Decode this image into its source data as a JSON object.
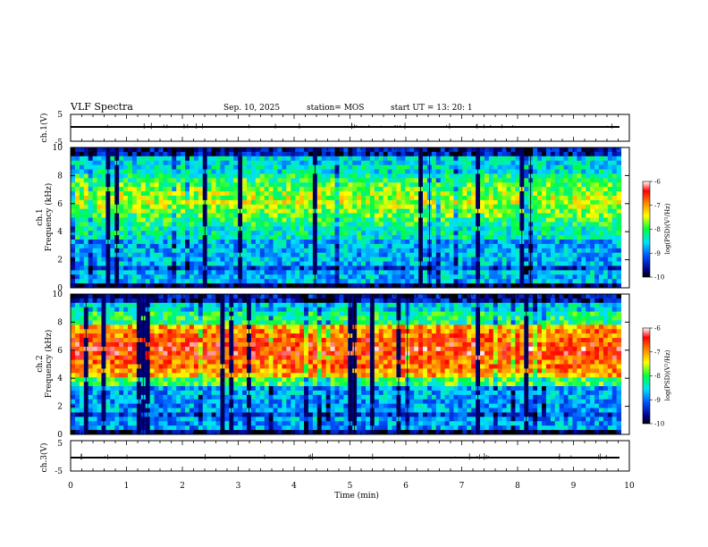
{
  "header": {
    "title": "VLF Spectra",
    "date": "Sep. 10, 2025",
    "station": "station= MOS",
    "start": "start  UT  =   13: 20: 1"
  },
  "chart_data": [
    {
      "type": "line",
      "name": "ch1-voltage",
      "ylabel": "ch.1(V)",
      "ylim": [
        -5,
        5
      ],
      "yticks": [
        "5",
        "-5"
      ],
      "xlim": [
        0,
        10
      ],
      "baseline": 0,
      "color": "#000000"
    },
    {
      "type": "heatmap",
      "name": "ch1-spectrogram",
      "ylabel_top": "ch.1",
      "ylabel": "Frequency (kHz)",
      "ylim": [
        0,
        10
      ],
      "yticks": [
        "0",
        "2",
        "4",
        "6",
        "8",
        "10"
      ],
      "xlim": [
        0,
        9.85
      ],
      "peak_freq_khz": 6.2,
      "peak_level": 0.62,
      "mid_level": 0.42,
      "low_band_level": 0.32,
      "dark_band_khz": [
        1.3,
        1.6
      ],
      "colorbar": {
        "label": "log(PSD)(V²/Hz)",
        "ticks": [
          "-6",
          "-7",
          "-8",
          "-9",
          "-10"
        ],
        "range": [
          -10,
          -6
        ]
      }
    },
    {
      "type": "heatmap",
      "name": "ch2-spectrogram",
      "ylabel_top": "ch.2",
      "ylabel": "Frequency (kHz)",
      "ylim": [
        0,
        10
      ],
      "yticks": [
        "0",
        "2",
        "4",
        "6",
        "8",
        "10"
      ],
      "xlim": [
        0,
        9.85
      ],
      "peak_freq_khz": 6.0,
      "peak_level": 0.88,
      "mid_level": 0.5,
      "low_band_level": 0.3,
      "dark_band_khz": [
        1.3,
        1.6
      ],
      "colorbar": {
        "label": "log(PSD)(V²/Hz)",
        "ticks": [
          "-6",
          "-7",
          "-8",
          "-9",
          "-10"
        ],
        "range": [
          -10,
          -6
        ]
      }
    },
    {
      "type": "line",
      "name": "ch3-voltage",
      "ylabel": "ch.3(V)",
      "ylim": [
        -5,
        5
      ],
      "yticks": [
        "5",
        "-5"
      ],
      "xlim": [
        0,
        10
      ],
      "baseline": 0,
      "color": "#000000"
    }
  ],
  "x_axis": {
    "label": "Time  (min)",
    "ticks": [
      "0",
      "1",
      "2",
      "3",
      "4",
      "5",
      "6",
      "7",
      "8",
      "9",
      "10"
    ]
  }
}
